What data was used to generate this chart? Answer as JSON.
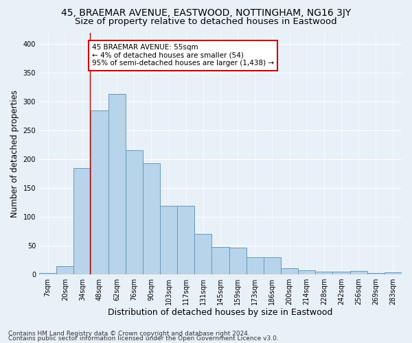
{
  "title": "45, BRAEMAR AVENUE, EASTWOOD, NOTTINGHAM, NG16 3JY",
  "subtitle": "Size of property relative to detached houses in Eastwood",
  "xlabel": "Distribution of detached houses by size in Eastwood",
  "ylabel": "Number of detached properties",
  "categories": [
    "7sqm",
    "20sqm",
    "34sqm",
    "48sqm",
    "62sqm",
    "76sqm",
    "90sqm",
    "103sqm",
    "117sqm",
    "131sqm",
    "145sqm",
    "159sqm",
    "173sqm",
    "186sqm",
    "200sqm",
    "214sqm",
    "228sqm",
    "242sqm",
    "256sqm",
    "269sqm",
    "283sqm"
  ],
  "values": [
    2,
    14,
    185,
    285,
    313,
    216,
    193,
    119,
    119,
    70,
    47,
    46,
    30,
    30,
    10,
    7,
    5,
    5,
    6,
    2,
    3
  ],
  "bar_color": "#b8d4ea",
  "bar_edge_color": "#6699bb",
  "annotation_line1": "45 BRAEMAR AVENUE: 55sqm",
  "annotation_line2": "← 4% of detached houses are smaller (54)",
  "annotation_line3": "95% of semi-detached houses are larger (1,438) →",
  "annotation_box_color": "white",
  "annotation_box_edge_color": "#cc0000",
  "vline_color": "#cc0000",
  "vline_x_index": 2.45,
  "ylim": [
    0,
    420
  ],
  "yticks": [
    0,
    50,
    100,
    150,
    200,
    250,
    300,
    350,
    400
  ],
  "footnote1": "Contains HM Land Registry data © Crown copyright and database right 2024.",
  "footnote2": "Contains public sector information licensed under the Open Government Licence v3.0.",
  "background_color": "#e8f0f8",
  "grid_color": "white",
  "title_fontsize": 10,
  "subtitle_fontsize": 9.5,
  "tick_fontsize": 7,
  "ylabel_fontsize": 8.5,
  "xlabel_fontsize": 9,
  "annotation_fontsize": 7.5,
  "footnote_fontsize": 6.5
}
